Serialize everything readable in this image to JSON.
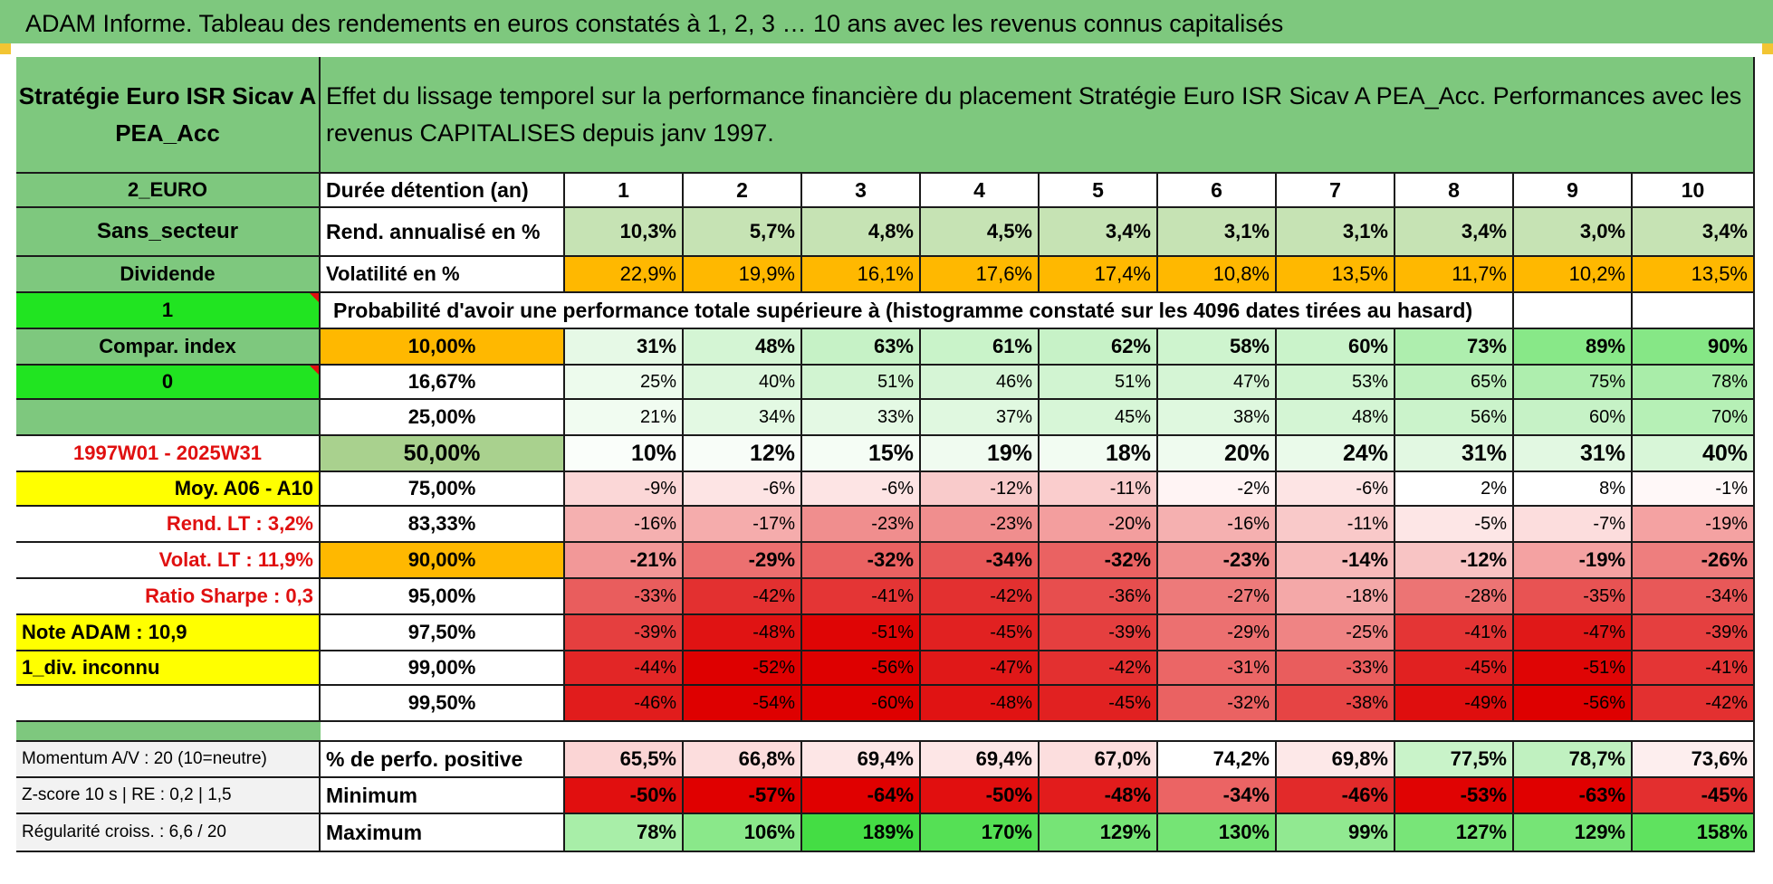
{
  "title": "ADAM Informe. Tableau des rendements en euros constatés à 1, 2, 3 … 10 ans avec les revenus connus capitalisés",
  "fund": {
    "name": "Stratégie Euro ISR Sicav A PEA_Acc",
    "description": "Effet du lissage temporel sur la performance financière du placement Stratégie Euro ISR Sicav A PEA_Acc. Performances avec les revenus CAPITALISES depuis janv 1997."
  },
  "side": {
    "currency": "2_EURO",
    "sector": "Sans_secteur",
    "dividend_label": "Dividende",
    "selector_1": "1",
    "compare_label": "Compar. index",
    "selector_2": "0",
    "blank": "",
    "period": "1997W01 - 2025W31",
    "avg_label": "Moy. A06 - A10",
    "rend_lt": "Rend. LT :    3,2%",
    "volat_lt": "Volat. LT :    11,9%",
    "sharpe": "Ratio Sharpe :    0,3",
    "note": "Note ADAM : 10,9",
    "div_info": "1_div. inconnu",
    "momentum": "Momentum A/V : 20 (10=neutre)",
    "zscore": "Z-score 10 s | RE : 0,2 | 1,5",
    "regularite": "Régularité croiss. : 6,6 / 20"
  },
  "header_row": {
    "label": "Durée détention (an)",
    "years": [
      "1",
      "2",
      "3",
      "4",
      "5",
      "6",
      "7",
      "8",
      "9",
      "10"
    ]
  },
  "rend_row": {
    "label": "Rend. annualisé en %",
    "values": [
      "10,3%",
      "5,7%",
      "4,8%",
      "4,5%",
      "3,4%",
      "3,1%",
      "3,1%",
      "3,4%",
      "3,0%",
      "3,4%"
    ]
  },
  "vol_row": {
    "label": "Volatilité en %",
    "values": [
      "22,9%",
      "19,9%",
      "16,1%",
      "17,6%",
      "17,4%",
      "10,8%",
      "13,5%",
      "11,7%",
      "10,2%",
      "13,5%"
    ]
  },
  "prob_text": "Probabilité d'avoir une performance totale supérieure à (histogramme constaté sur les 4096 dates tirées au hasard)",
  "prob_rows": [
    {
      "threshold": "10,00%",
      "values": [
        "31%",
        "48%",
        "63%",
        "61%",
        "62%",
        "58%",
        "60%",
        "73%",
        "89%",
        "90%"
      ],
      "colors": [
        "#e6f9e6",
        "#d4f5d4",
        "#c6f2c6",
        "#c9f3c9",
        "#c7f2c7",
        "#cef4ce",
        "#caf3ca",
        "#aeeeae",
        "#88e888",
        "#86e786"
      ]
    },
    {
      "threshold": "16,67%",
      "values": [
        "25%",
        "40%",
        "51%",
        "46%",
        "51%",
        "47%",
        "53%",
        "65%",
        "75%",
        "78%"
      ],
      "colors": [
        "#edfbed",
        "#dcf7dc",
        "#d1f4d1",
        "#d6f5d6",
        "#d1f4d1",
        "#d5f5d5",
        "#cff4cf",
        "#bef1be",
        "#aeeeae",
        "#a9eda9"
      ]
    },
    {
      "threshold": "25,00%",
      "values": [
        "21%",
        "34%",
        "33%",
        "37%",
        "45%",
        "38%",
        "48%",
        "56%",
        "60%",
        "70%"
      ],
      "colors": [
        "#f1fcf1",
        "#e3f9e3",
        "#e4f9e4",
        "#e0f8e0",
        "#d7f6d7",
        "#dff8df",
        "#d4f5d4",
        "#cbf3cb",
        "#c6f2c6",
        "#b6f0b6"
      ]
    },
    {
      "threshold": "50,00%",
      "values": [
        "10%",
        "12%",
        "15%",
        "19%",
        "18%",
        "20%",
        "24%",
        "31%",
        "31%",
        "40%"
      ],
      "colors": [
        "#fafefa",
        "#f8fdf8",
        "#f5fdf5",
        "#f0fbf0",
        "#f2fcf2",
        "#effbef",
        "#eafaea",
        "#e2f8e2",
        "#e2f8e2",
        "#d8f6d8"
      ]
    },
    {
      "threshold": "75,00%",
      "values": [
        "-9%",
        "-6%",
        "-6%",
        "-12%",
        "-11%",
        "-2%",
        "-6%",
        "2%",
        "8%",
        "-1%"
      ],
      "colors": [
        "#fbd7d7",
        "#fde4e4",
        "#fde4e4",
        "#f9cbcb",
        "#facdcd",
        "#fff4f4",
        "#fde4e4",
        "#ffffff",
        "#ffffff",
        "#fff8f8"
      ]
    },
    {
      "threshold": "83,33%",
      "values": [
        "-16%",
        "-17%",
        "-23%",
        "-23%",
        "-20%",
        "-16%",
        "-11%",
        "-5%",
        "-7%",
        "-19%"
      ],
      "colors": [
        "#f5b0b0",
        "#f5acac",
        "#f08e8e",
        "#f08e8e",
        "#f39e9e",
        "#f5b0b0",
        "#f9c9c9",
        "#fde6e6",
        "#fcdddd",
        "#f4a2a2"
      ]
    },
    {
      "threshold": "90,00%",
      "values": [
        "-21%",
        "-29%",
        "-32%",
        "-34%",
        "-32%",
        "-23%",
        "-14%",
        "-12%",
        "-19%",
        "-26%"
      ],
      "colors": [
        "#f29898",
        "#ec7070",
        "#ea6262",
        "#e85858",
        "#ea6262",
        "#f08e8e",
        "#f7baba",
        "#f8c4c4",
        "#f4a2a2",
        "#ee7e7e"
      ]
    },
    {
      "threshold": "95,00%",
      "values": [
        "-33%",
        "-42%",
        "-41%",
        "-42%",
        "-36%",
        "-27%",
        "-18%",
        "-28%",
        "-35%",
        "-34%"
      ],
      "colors": [
        "#e95d5d",
        "#e33030",
        "#e43535",
        "#e33030",
        "#e74e4e",
        "#ed7a7a",
        "#f4a8a8",
        "#ec7474",
        "#e85353",
        "#e85858"
      ]
    },
    {
      "threshold": "97,50%",
      "values": [
        "-39%",
        "-48%",
        "-51%",
        "-45%",
        "-39%",
        "-29%",
        "-25%",
        "-41%",
        "-47%",
        "-39%"
      ],
      "colors": [
        "#e53f3f",
        "#e01313",
        "#df0505",
        "#e12121",
        "#e53f3f",
        "#ec7070",
        "#ef8484",
        "#e43535",
        "#e01818",
        "#e53f3f"
      ]
    },
    {
      "threshold": "99,00%",
      "values": [
        "-44%",
        "-52%",
        "-56%",
        "-47%",
        "-42%",
        "-31%",
        "-33%",
        "-45%",
        "-51%",
        "-41%"
      ],
      "colors": [
        "#e22626",
        "#de0000",
        "#de0000",
        "#e01818",
        "#e33030",
        "#eb6666",
        "#e95d5d",
        "#e12121",
        "#df0505",
        "#e43535"
      ]
    },
    {
      "threshold": "99,50%",
      "values": [
        "-46%",
        "-54%",
        "-60%",
        "-48%",
        "-45%",
        "-32%",
        "-38%",
        "-49%",
        "-56%",
        "-42%"
      ],
      "colors": [
        "#e11c1c",
        "#de0000",
        "#de0000",
        "#e01313",
        "#e12121",
        "#ea6262",
        "#e64444",
        "#df0e0e",
        "#de0000",
        "#e33030"
      ]
    }
  ],
  "positive_row": {
    "label": "% de perfo. positive",
    "values": [
      "65,5%",
      "66,8%",
      "69,4%",
      "69,4%",
      "67,0%",
      "74,2%",
      "69,8%",
      "77,5%",
      "78,7%",
      "73,6%"
    ],
    "colors": [
      "#fbd5d5",
      "#fcdddd",
      "#fde6e6",
      "#fde6e6",
      "#fcdede",
      "#ffffff",
      "#fde8e8",
      "#c9f3c9",
      "#c0f1c0",
      "#fdeeee"
    ]
  },
  "min_row": {
    "label": "Minimum",
    "values": [
      "-50%",
      "-57%",
      "-64%",
      "-50%",
      "-48%",
      "-34%",
      "-46%",
      "-53%",
      "-63%",
      "-45%"
    ],
    "colors": [
      "#e10f0f",
      "#e00000",
      "#e00000",
      "#e10f0f",
      "#e21c1c",
      "#eb6464",
      "#e22a2a",
      "#e00303",
      "#e00000",
      "#e32f2f"
    ]
  },
  "max_row": {
    "label": "Maximum",
    "values": [
      "78%",
      "106%",
      "189%",
      "170%",
      "129%",
      "130%",
      "99%",
      "127%",
      "129%",
      "158%"
    ],
    "colors": [
      "#a8eea8",
      "#8ae88a",
      "#44dd44",
      "#55e055",
      "#76e476",
      "#75e475",
      "#91e991",
      "#78e578",
      "#76e476",
      "#5fe25f"
    ]
  },
  "colors": {
    "banner": "#7ec87e",
    "side_green": "#7ec87e",
    "bright_green": "#21e421",
    "yellow": "#ffff00",
    "orange": "#ffb800",
    "rend_green": "#c6e3b4",
    "median_green": "#a9d18e",
    "alert_red": "#e01010"
  }
}
